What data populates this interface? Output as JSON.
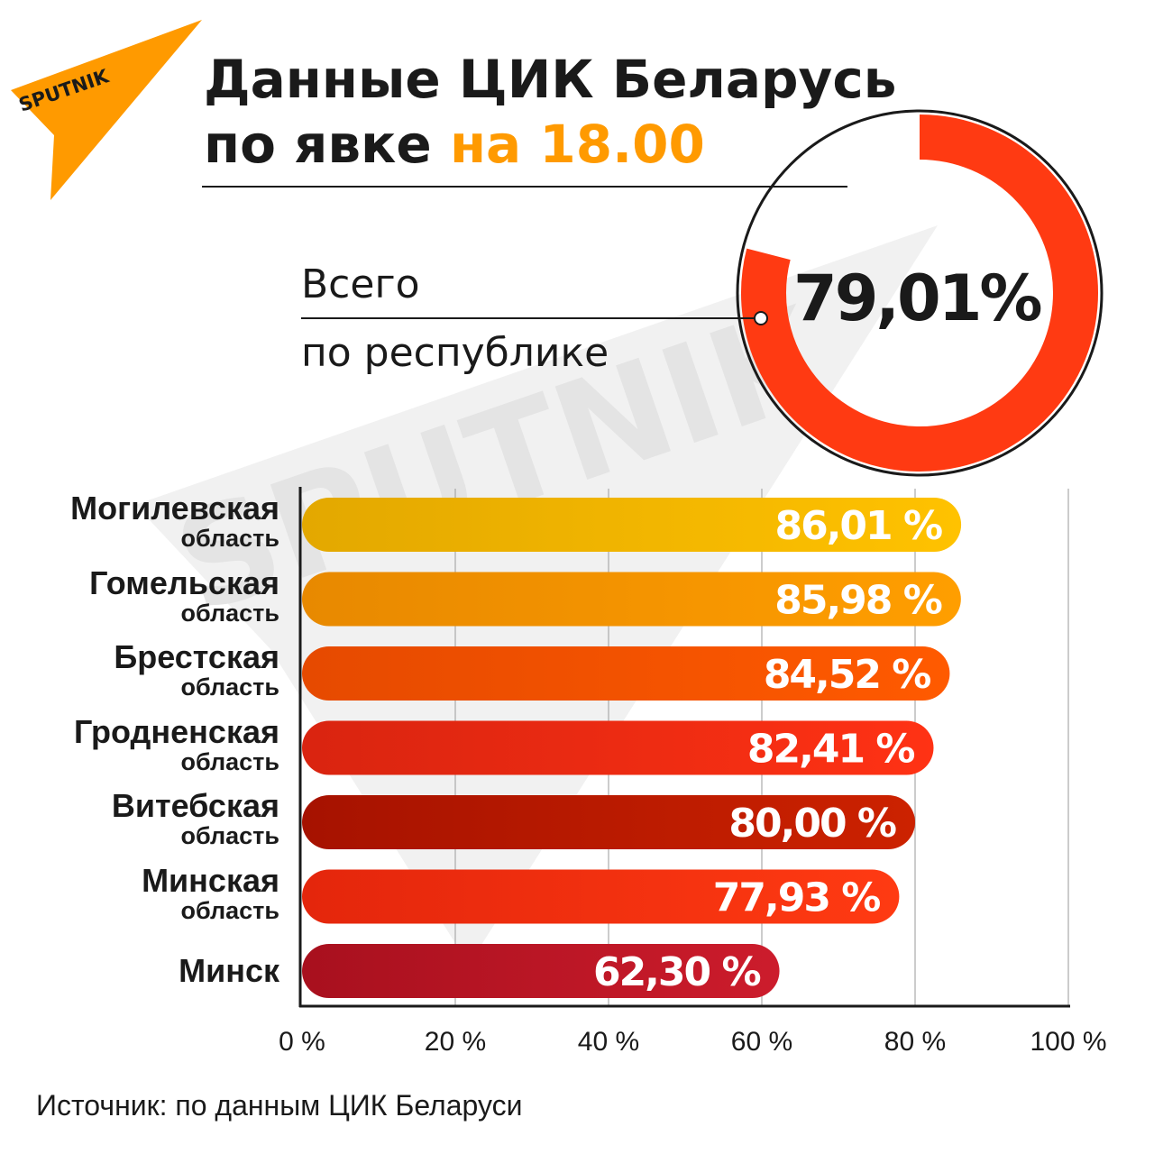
{
  "brand": {
    "logo_text": "SPUTNIK",
    "watermark_text": "SPUTNIK"
  },
  "title": {
    "line1": "Данные ЦИК Беларусь",
    "line2_prefix": "по явке",
    "line2_accent": "на 18.00"
  },
  "total": {
    "label_line1": "Всего",
    "label_line2": "по республике",
    "value": 79.01,
    "value_text": "79,01%"
  },
  "source": "Источник: по данным ЦИК Беларуси",
  "colors": {
    "accent": "#ff9a00",
    "ring": "#ff3a12",
    "ring_track": "#ffffff",
    "text": "#1a1a1a",
    "watermark": "#e9e9e9"
  },
  "chart_data": {
    "type": "bar",
    "orientation": "horizontal",
    "categories": [
      {
        "name": "Могилевская",
        "sub": "область"
      },
      {
        "name": "Гомельская",
        "sub": "область"
      },
      {
        "name": "Брестская",
        "sub": "область"
      },
      {
        "name": "Гродненская",
        "sub": "область"
      },
      {
        "name": "Витебская",
        "sub": "область"
      },
      {
        "name": "Минская",
        "sub": "область"
      },
      {
        "name": "Минск",
        "sub": ""
      }
    ],
    "values": [
      86.01,
      85.98,
      84.52,
      82.41,
      80.0,
      77.93,
      62.3
    ],
    "value_labels": [
      "86,01 %",
      "85,98 %",
      "84,52 %",
      "82,41 %",
      "80,00 %",
      "77,93 %",
      "62,30 %"
    ],
    "bar_colors": [
      [
        "#e3a800",
        "#ffc200"
      ],
      [
        "#e88900",
        "#ff9e00"
      ],
      [
        "#e64a00",
        "#ff5a00"
      ],
      [
        "#d92410",
        "#ff3214"
      ],
      [
        "#a61200",
        "#cc2200"
      ],
      [
        "#e4260c",
        "#ff3a12"
      ],
      [
        "#a8101e",
        "#cc1c2c"
      ]
    ],
    "xlim": [
      0,
      100
    ],
    "xticks": [
      0,
      20,
      40,
      60,
      80,
      100
    ],
    "xtick_labels": [
      "0 %",
      "20 %",
      "40 %",
      "60 %",
      "80 %",
      "100 %"
    ],
    "grid": true
  }
}
